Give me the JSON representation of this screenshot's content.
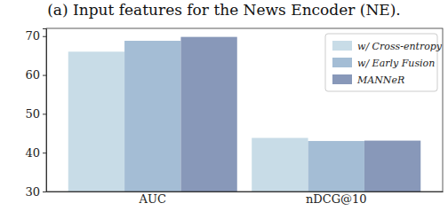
{
  "chart_data": {
    "type": "bar",
    "title": "(a) Input features for the News Encoder (NE).",
    "categories": [
      "AUC",
      "nDCG@10"
    ],
    "series": [
      {
        "name": "w/ Cross-entropy",
        "color": "#c8dce7",
        "values": [
          66.0,
          43.8
        ]
      },
      {
        "name": "w/ Early Fusion",
        "color": "#a4bdd5",
        "values": [
          68.8,
          43.0
        ]
      },
      {
        "name": "MANNeR",
        "color": "#8898b9",
        "values": [
          69.8,
          43.1
        ]
      }
    ],
    "ylim": [
      30,
      72
    ],
    "yticks": [
      30,
      40,
      50,
      60,
      70
    ],
    "grid": false,
    "legend": "upper right"
  }
}
